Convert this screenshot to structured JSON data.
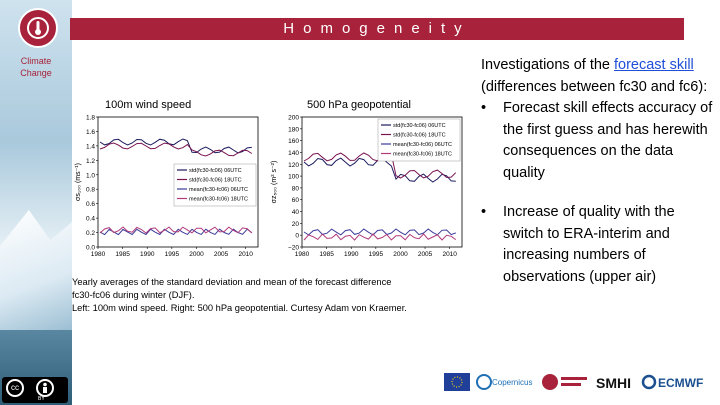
{
  "header": {
    "title": "Homogeneity"
  },
  "sidebar": {
    "label": "Climate Change"
  },
  "figure": {
    "left_label": "100m wind speed",
    "right_label": "500 hPa geopotential",
    "left_ylabel": "σs₁₀₀ (ms⁻¹)",
    "right_ylabel": "σz₅₀₀ (m² s⁻²)",
    "left_yticks": [
      "1.8",
      "1.6",
      "1.4",
      "1.2",
      "1.0",
      "0.8",
      "0.6",
      "0.4",
      "0.2",
      "0.0"
    ],
    "right_yticks": [
      "200",
      "180",
      "160",
      "140",
      "120",
      "100",
      "80",
      "60",
      "40",
      "20",
      "0",
      "−20"
    ],
    "xticks": [
      "1980",
      "1985",
      "1990",
      "1995",
      "2000",
      "2005",
      "2010"
    ],
    "left_legend": [
      "std(fc30-fc06) 06UTC",
      "std(fc30-fc06) 18UTC",
      "mean(fc30-fc06) 06UTC",
      "mean(fc30-fc06) 18UTC"
    ],
    "right_legend": [
      "std(fc30-fc06) 06UTC",
      "std(fc30-fc06) 18UTC",
      "mean(fc30-fc06) 06UTC",
      "mean(fc30-fc06) 18UTC"
    ],
    "colors": {
      "std_06": "#1b1b5e",
      "std_18": "#7a1450",
      "mean_06": "#3b3b9a",
      "mean_18": "#b03a7a"
    }
  },
  "caption": {
    "line1": "Yearly averages of the standard deviation and mean of the forecast difference",
    "line2": "fc30-fc06 during winter (DJF).",
    "line3": "Left: 100m wind speed. Right: 500 hPa geopotential. Curtesy Adam von Kraemer."
  },
  "text": {
    "intro_prefix": "Investigations of the ",
    "link": "forecast skill ",
    "intro_suffix": "(differences between fc30 and fc6):",
    "bullet1": "Forecast skill effects accuracy of the first guess and has herewith consequences on the data quality",
    "bullet2": "Increase of quality with the switch to ERA-interim and increasing numbers of observations (upper air)",
    "bullet_symbol": "•"
  },
  "footer": {
    "cc": "cc",
    "by": "BY",
    "logos": [
      "eu-flag-icon",
      "copernicus-logo",
      "climate-change-service-logo",
      "smhi-logo",
      "ecmwf-logo"
    ],
    "copernicus": "Copernicus",
    "smhi": "SMHI",
    "ecmwf": "ECMWF"
  }
}
